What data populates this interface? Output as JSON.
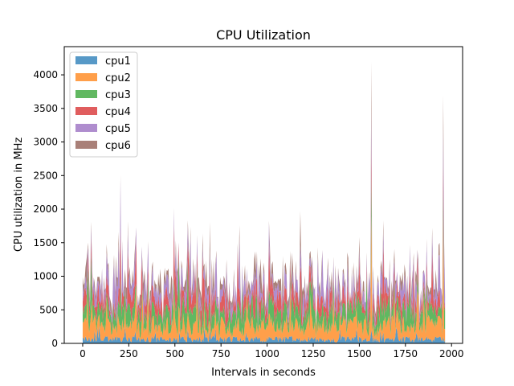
{
  "chart_data": {
    "type": "area",
    "stacked": true,
    "title": "CPU Utilization",
    "xlabel": "Intervals in seconds",
    "ylabel": "CPU utilization in MHz",
    "xlim": [
      -100,
      2060
    ],
    "ylim": [
      0,
      4420
    ],
    "xticks": [
      0,
      250,
      500,
      750,
      1000,
      1250,
      1500,
      1750,
      2000
    ],
    "yticks": [
      0,
      500,
      1000,
      1500,
      2000,
      2500,
      3000,
      3500,
      4000
    ],
    "legend_position": "top-left",
    "x_range": [
      0,
      1965
    ],
    "sample_step": 5,
    "series": [
      {
        "name": "cpu1",
        "color": "#1f77b4",
        "mean": 60,
        "noise": 50
      },
      {
        "name": "cpu2",
        "color": "#ff7f0e",
        "mean": 200,
        "noise": 150
      },
      {
        "name": "cpu3",
        "color": "#2ca02c",
        "mean": 200,
        "noise": 160
      },
      {
        "name": "cpu4",
        "color": "#d62728",
        "mean": 160,
        "noise": 170
      },
      {
        "name": "cpu5",
        "color": "#9467bd",
        "mean": 160,
        "noise": 170
      },
      {
        "name": "cpu6",
        "color": "#8c564b",
        "mean": 80,
        "noise": 110
      }
    ],
    "spikes": [
      {
        "x": 30,
        "values": [
          40,
          300,
          800,
          200,
          100,
          60
        ]
      },
      {
        "x": 45,
        "values": [
          30,
          400,
          900,
          250,
          150,
          80
        ]
      },
      {
        "x": 1565,
        "values": [
          200,
          1700,
          600,
          500,
          500,
          700
        ]
      },
      {
        "x": 1955,
        "values": [
          100,
          1800,
          400,
          400,
          500,
          500
        ]
      }
    ]
  }
}
